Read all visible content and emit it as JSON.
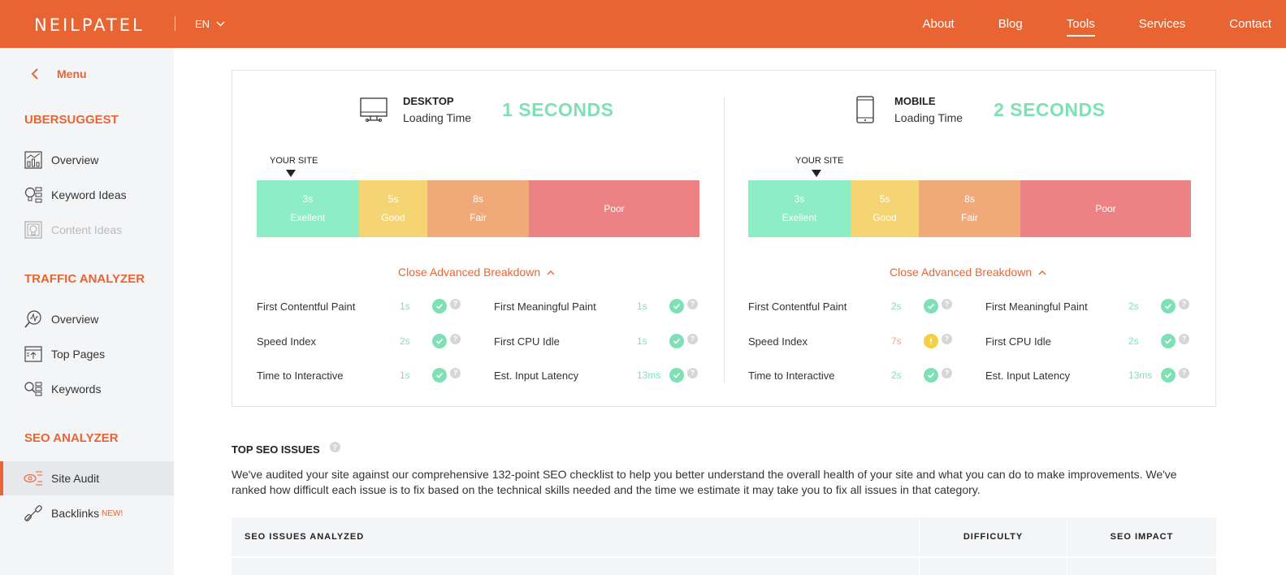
{
  "header": {
    "logo": "NEILPATEL",
    "language": "EN",
    "nav": [
      {
        "label": "About",
        "active": false
      },
      {
        "label": "Blog",
        "active": false
      },
      {
        "label": "Tools",
        "active": true
      },
      {
        "label": "Services",
        "active": false
      },
      {
        "label": "Contact",
        "active": false
      }
    ]
  },
  "sidebar": {
    "menu_label": "Menu",
    "sections": [
      {
        "title": "UBERSUGGEST",
        "items": [
          {
            "label": "Overview",
            "icon": "chart-icon",
            "state": "normal"
          },
          {
            "label": "Keyword Ideas",
            "icon": "lightbulb-list-icon",
            "state": "normal"
          },
          {
            "label": "Content Ideas",
            "icon": "content-bulb-icon",
            "state": "disabled"
          }
        ]
      },
      {
        "title": "TRAFFIC ANALYZER",
        "items": [
          {
            "label": "Overview",
            "icon": "traffic-magnifier-icon",
            "state": "normal"
          },
          {
            "label": "Top Pages",
            "icon": "top-pages-icon",
            "state": "normal"
          },
          {
            "label": "Keywords",
            "icon": "keywords-icon",
            "state": "normal"
          }
        ]
      },
      {
        "title": "SEO ANALYZER",
        "items": [
          {
            "label": "Site Audit",
            "icon": "site-audit-icon",
            "state": "active"
          },
          {
            "label": "Backlinks",
            "icon": "link-icon",
            "state": "normal",
            "badge": "NEW!"
          }
        ]
      }
    ]
  },
  "speed": {
    "devices": [
      {
        "name": "DESKTOP",
        "sub": "Loading Time",
        "time": "1 SECONDS",
        "icon": "desktop-icon",
        "your_site_label": "YOUR SITE",
        "scale": [
          {
            "top": "3s",
            "bottom": "Exellent"
          },
          {
            "top": "5s",
            "bottom": "Good"
          },
          {
            "top": "8s",
            "bottom": "Fair"
          },
          {
            "top": "",
            "bottom": "Poor"
          }
        ],
        "breakdown_label": "Close Advanced Breakdown",
        "metrics_left": [
          {
            "name": "First Contentful Paint",
            "value": "1s",
            "status": "ok"
          },
          {
            "name": "Speed Index",
            "value": "2s",
            "status": "ok"
          },
          {
            "name": "Time to Interactive",
            "value": "1s",
            "status": "ok"
          }
        ],
        "metrics_right": [
          {
            "name": "First Meaningful Paint",
            "value": "1s",
            "status": "ok"
          },
          {
            "name": "First CPU Idle",
            "value": "1s",
            "status": "ok"
          },
          {
            "name": "Est. Input Latency",
            "value": "13ms",
            "status": "ok"
          }
        ]
      },
      {
        "name": "MOBILE",
        "sub": "Loading Time",
        "time": "2 SECONDS",
        "icon": "mobile-icon",
        "your_site_label": "YOUR SITE",
        "scale": [
          {
            "top": "3s",
            "bottom": "Exellent"
          },
          {
            "top": "5s",
            "bottom": "Good"
          },
          {
            "top": "8s",
            "bottom": "Fair"
          },
          {
            "top": "",
            "bottom": "Poor"
          }
        ],
        "breakdown_label": "Close Advanced Breakdown",
        "metrics_left": [
          {
            "name": "First Contentful Paint",
            "value": "2s",
            "status": "ok"
          },
          {
            "name": "Speed Index",
            "value": "7s",
            "status": "warn"
          },
          {
            "name": "Time to Interactive",
            "value": "2s",
            "status": "ok"
          }
        ],
        "metrics_right": [
          {
            "name": "First Meaningful Paint",
            "value": "2s",
            "status": "ok"
          },
          {
            "name": "First CPU Idle",
            "value": "2s",
            "status": "ok"
          },
          {
            "name": "Est. Input Latency",
            "value": "13ms",
            "status": "ok"
          }
        ]
      }
    ]
  },
  "seo_issues": {
    "title": "TOP SEO ISSUES",
    "description": "We've audited your site against our comprehensive 132-point SEO checklist to help you better understand the overall health of your site and what you can do to make improvements. We've ranked how difficult each issue is to fix based on the technical skills needed and the time we estimate it may take you to fix all issues in that category.",
    "columns": [
      "SEO ISSUES ANALYZED",
      "DIFFICULTY",
      "SEO IMPACT"
    ]
  },
  "colors": {
    "brand": "#E86533",
    "excellent": "#8DEDC5",
    "good": "#F5D573",
    "fair": "#F0AA7A",
    "poor": "#EC8283",
    "success": "#7FE0B6"
  }
}
